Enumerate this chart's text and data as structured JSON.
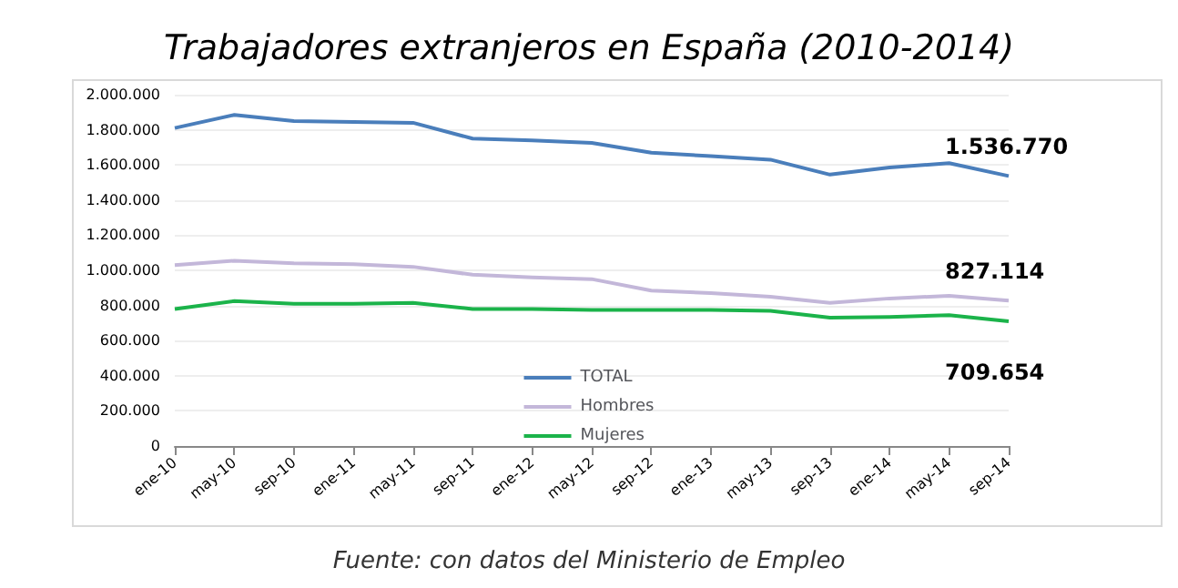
{
  "chart_data": {
    "type": "line",
    "title": "Trabajadores extranjeros en España (2010-2014)",
    "annotations": [
      "Fuente: con datos del Ministerio de Empleo"
    ],
    "categories": [
      "ene-10",
      "may-10",
      "sep-10",
      "ene-11",
      "may-11",
      "sep-11",
      "ene-12",
      "may-12",
      "sep-12",
      "ene-13",
      "may-13",
      "sep-13",
      "ene-14",
      "may-14",
      "sep-14"
    ],
    "series": [
      {
        "name": "TOTAL",
        "color": "#4a7ebb",
        "values": [
          1810000,
          1885000,
          1850000,
          1845000,
          1840000,
          1750000,
          1740000,
          1725000,
          1670000,
          1650000,
          1630000,
          1545000,
          1585000,
          1610000,
          1536770
        ],
        "value_labels": [
          null,
          null,
          null,
          null,
          null,
          null,
          null,
          null,
          null,
          null,
          null,
          null,
          null,
          null,
          "1.536.770"
        ]
      },
      {
        "name": "Hombres",
        "color": "#c3b7d9",
        "values": [
          1030000,
          1055000,
          1040000,
          1035000,
          1020000,
          975000,
          960000,
          950000,
          885000,
          870000,
          850000,
          815000,
          840000,
          855000,
          827114
        ],
        "value_labels": [
          null,
          null,
          null,
          null,
          null,
          null,
          null,
          null,
          null,
          null,
          null,
          null,
          null,
          null,
          "827.114"
        ]
      },
      {
        "name": "Mujeres",
        "color": "#1bb34a",
        "values": [
          780000,
          825000,
          810000,
          810000,
          815000,
          780000,
          780000,
          775000,
          775000,
          775000,
          770000,
          730000,
          735000,
          745000,
          709654
        ],
        "value_labels": [
          null,
          null,
          null,
          null,
          null,
          null,
          null,
          null,
          null,
          null,
          null,
          null,
          null,
          null,
          "709.654"
        ]
      }
    ],
    "ylim": [
      0,
      2000000
    ],
    "yticks": [
      {
        "value": 0,
        "label": "0"
      },
      {
        "value": 200000,
        "label": "200.000"
      },
      {
        "value": 400000,
        "label": "400.000"
      },
      {
        "value": 600000,
        "label": "600.000"
      },
      {
        "value": 800000,
        "label": "800.000"
      },
      {
        "value": 1000000,
        "label": "1.000.000"
      },
      {
        "value": 1200000,
        "label": "1.200.000"
      },
      {
        "value": 1400000,
        "label": "1.400.000"
      },
      {
        "value": 1600000,
        "label": "1.600.000"
      },
      {
        "value": 1800000,
        "label": "1.800.000"
      },
      {
        "value": 2000000,
        "label": "2.000.000"
      }
    ],
    "grid": "y",
    "legend": "bottom",
    "marker": "none",
    "line_style": "solid"
  }
}
